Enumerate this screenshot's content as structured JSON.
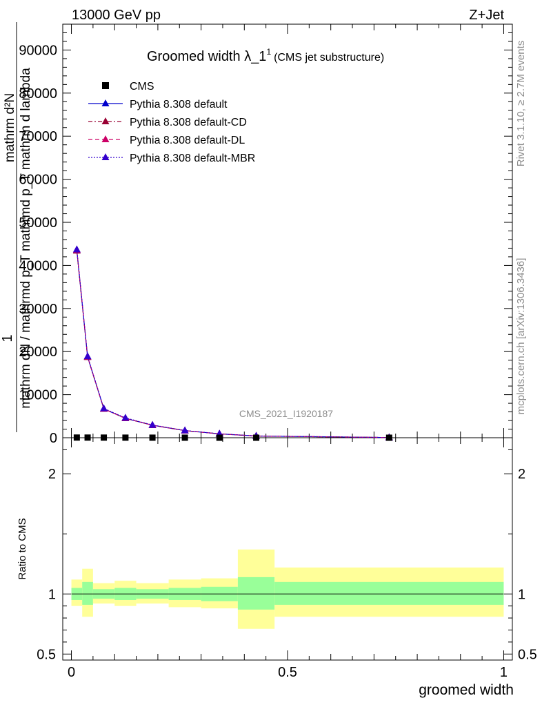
{
  "header": {
    "energy": "13000 GeV pp",
    "process": "Z+Jet"
  },
  "title": {
    "main": "Groomed width",
    "lambda": "λ_1",
    "sup": "1",
    "sub": "(CMS jet substructure)"
  },
  "side": {
    "rivet": "Rivet 3.1.10, ≥ 2.7M events",
    "mcplots": "mcplots.cern.ch [arXiv:1306.3436]"
  },
  "watermark": "CMS_2021_I1920187",
  "ylabel": {
    "one": "1",
    "numerator": "mathrm dN",
    "denominator": "mathrm dN / mathrmd p_T mathrmd p_T mathrm d lambda",
    "line_top": "mathrm d²N",
    "line_mid": "mathrmd p_T mathrm d lambda"
  },
  "ratio_ylabel": "Ratio to CMS",
  "xlabel": "groomed width",
  "colors": {
    "default": "#0000cc",
    "cd": "#990033",
    "dl": "#cc0066",
    "mbr": "#3300cc",
    "band_inner": "#99ff99",
    "band_outer": "#ffff99"
  },
  "chart_data": {
    "type": "line",
    "xlim": [
      -0.02,
      1.02
    ],
    "main_ylim": [
      0,
      90000
    ],
    "main_yticks": [
      0,
      10000,
      20000,
      30000,
      40000,
      50000,
      60000,
      70000,
      80000,
      90000
    ],
    "main_ytick_labels": [
      "0",
      "10000",
      "20000",
      "30000",
      "40000",
      "50000",
      "60000",
      "70000",
      "80000",
      "90000"
    ],
    "ratio_ylim": [
      0.45,
      2.3
    ],
    "ratio_yticks": [
      0.5,
      1,
      2
    ],
    "ratio_ytick_labels": [
      "0.5",
      "1",
      "2"
    ],
    "xticks": [
      0,
      0.5,
      1
    ],
    "xtick_labels": [
      "0",
      "0.5",
      "1"
    ],
    "bin_edges": [
      0.0,
      0.025,
      0.05,
      0.1,
      0.15,
      0.225,
      0.3,
      0.385,
      0.47,
      1.0
    ],
    "legend": [
      {
        "name": "CMS",
        "style": "square"
      },
      {
        "name": "Pythia 8.308 default",
        "style": "solid"
      },
      {
        "name": "Pythia 8.308 default-CD",
        "style": "dashdot"
      },
      {
        "name": "Pythia 8.308 default-DL",
        "style": "dash"
      },
      {
        "name": "Pythia 8.308 default-MBR",
        "style": "dot"
      }
    ],
    "cms": {
      "x": [
        0.0125,
        0.0375,
        0.075,
        0.125,
        0.1875,
        0.2625,
        0.3425,
        0.4275,
        0.735
      ],
      "y": [
        40,
        35,
        30,
        20,
        15,
        10,
        5,
        3,
        1
      ]
    },
    "series": [
      {
        "name": "Pythia 8.308 default",
        "x": [
          0.0125,
          0.0375,
          0.075,
          0.125,
          0.1875,
          0.2625,
          0.3425,
          0.4275,
          0.735
        ],
        "y": [
          43500,
          18800,
          6700,
          4500,
          2900,
          1650,
          900,
          400,
          50
        ]
      },
      {
        "name": "Pythia 8.308 default-CD",
        "x": [
          0.0125,
          0.0375,
          0.075,
          0.125,
          0.1875,
          0.2625,
          0.3425,
          0.4275,
          0.735
        ],
        "y": [
          43400,
          18700,
          6700,
          4500,
          2900,
          1650,
          900,
          400,
          50
        ]
      },
      {
        "name": "Pythia 8.308 default-DL",
        "x": [
          0.0125,
          0.0375,
          0.075,
          0.125,
          0.1875,
          0.2625,
          0.3425,
          0.4275,
          0.735
        ],
        "y": [
          43600,
          18800,
          6700,
          4500,
          2900,
          1650,
          900,
          400,
          50
        ]
      },
      {
        "name": "Pythia 8.308 default-MBR",
        "x": [
          0.0125,
          0.0375,
          0.075,
          0.125,
          0.1875,
          0.2625,
          0.3425,
          0.4275,
          0.735
        ],
        "y": [
          43700,
          18900,
          6800,
          4600,
          2950,
          1680,
          920,
          410,
          50
        ]
      }
    ],
    "ratio_band_inner": [
      {
        "lo": 0.95,
        "hi": 1.05
      },
      {
        "lo": 0.91,
        "hi": 1.1
      },
      {
        "lo": 0.96,
        "hi": 1.04
      },
      {
        "lo": 0.95,
        "hi": 1.05
      },
      {
        "lo": 0.96,
        "hi": 1.04
      },
      {
        "lo": 0.95,
        "hi": 1.05
      },
      {
        "lo": 0.94,
        "hi": 1.06
      },
      {
        "lo": 0.87,
        "hi": 1.14
      },
      {
        "lo": 0.91,
        "hi": 1.1
      }
    ],
    "ratio_band_outer": [
      {
        "lo": 0.9,
        "hi": 1.12
      },
      {
        "lo": 0.81,
        "hi": 1.21
      },
      {
        "lo": 0.92,
        "hi": 1.09
      },
      {
        "lo": 0.9,
        "hi": 1.11
      },
      {
        "lo": 0.92,
        "hi": 1.09
      },
      {
        "lo": 0.89,
        "hi": 1.12
      },
      {
        "lo": 0.88,
        "hi": 1.13
      },
      {
        "lo": 0.71,
        "hi": 1.37
      },
      {
        "lo": 0.81,
        "hi": 1.22
      }
    ],
    "ratio_line": 1
  }
}
